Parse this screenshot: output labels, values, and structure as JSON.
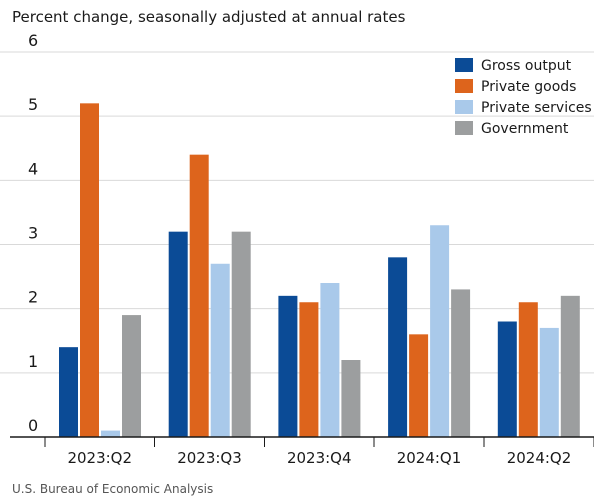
{
  "chart_data": {
    "type": "bar",
    "subtitle": "Percent change, seasonally adjusted at annual rates",
    "source": "U.S. Bureau of Economic Analysis",
    "categories": [
      "2023:Q2",
      "2023:Q3",
      "2023:Q4",
      "2024:Q1",
      "2024:Q2"
    ],
    "series": [
      {
        "name": "Gross output",
        "color": "#0b4b96",
        "values": [
          1.4,
          3.2,
          2.2,
          2.8,
          1.8
        ]
      },
      {
        "name": "Private goods",
        "color": "#dd641c",
        "values": [
          5.2,
          4.4,
          2.1,
          1.6,
          2.1
        ]
      },
      {
        "name": "Private services",
        "color": "#a9c9ea",
        "values": [
          0.1,
          2.7,
          2.4,
          3.3,
          1.7
        ]
      },
      {
        "name": "Government",
        "color": "#9c9e9f",
        "values": [
          1.9,
          3.2,
          1.2,
          2.3,
          2.2
        ]
      }
    ],
    "ylim": [
      0,
      6
    ],
    "yticks": [
      0,
      1,
      2,
      3,
      4,
      5,
      6
    ],
    "grid": true,
    "legend": "top-right"
  }
}
